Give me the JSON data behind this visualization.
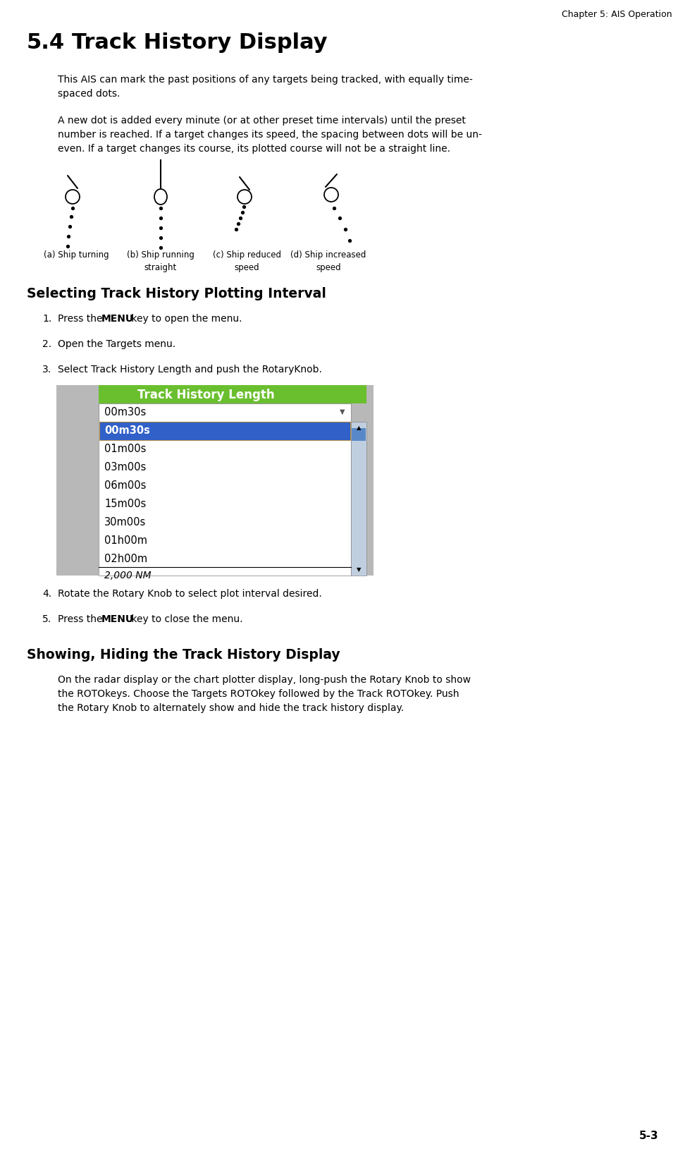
{
  "page_header": "Chapter 5: AIS Operation",
  "section_number": "5.4",
  "section_title": "Track History Display",
  "body_text_1a": "This AIS can mark the past positions of any targets being tracked, with equally time-",
  "body_text_1b": "spaced dots.",
  "body_text_2a": "A new dot is added every minute (or at other preset time intervals) until the preset",
  "body_text_2b": "number is reached. If a target changes its speed, the spacing between dots will be un-",
  "body_text_2c": "even. If a target changes its course, its plotted course will not be a straight line.",
  "ship_captions": [
    "(a) Ship turning",
    "(b) Ship running\nstraight",
    "(c) Ship reduced\nspeed",
    "(d) Ship increased\nspeed"
  ],
  "subsection1_title": "Selecting Track History Plotting Interval",
  "subsection2_title": "Showing, Hiding the Track History Display",
  "body_text_3a": "On the radar display or the chart plotter display, long-push the Rotary Knob to show",
  "body_text_3b": "the ROTOkeys. Choose the Targets ROTOkey followed by the Track ROTOkey. Push",
  "body_text_3c": "the Rotary Knob to alternately show and hide the track history display.",
  "menu_title": "Track History Length",
  "menu_title_bg": "#6abf2e",
  "menu_selected_item": "00m30s",
  "menu_selected_bg": "#3060c8",
  "menu_selected_fg": "#ffffff",
  "menu_first_row": "00m30s",
  "menu_items": [
    "00m30s",
    "01m00s",
    "03m00s",
    "06m00s",
    "15m00s",
    "30m00s",
    "01h00m",
    "02h00m"
  ],
  "menu_bottom_text": "2,000 NM",
  "menu_outer_bg": "#b8b8b8",
  "page_number": "5-3",
  "bg_color": "#ffffff",
  "text_color": "#000000"
}
